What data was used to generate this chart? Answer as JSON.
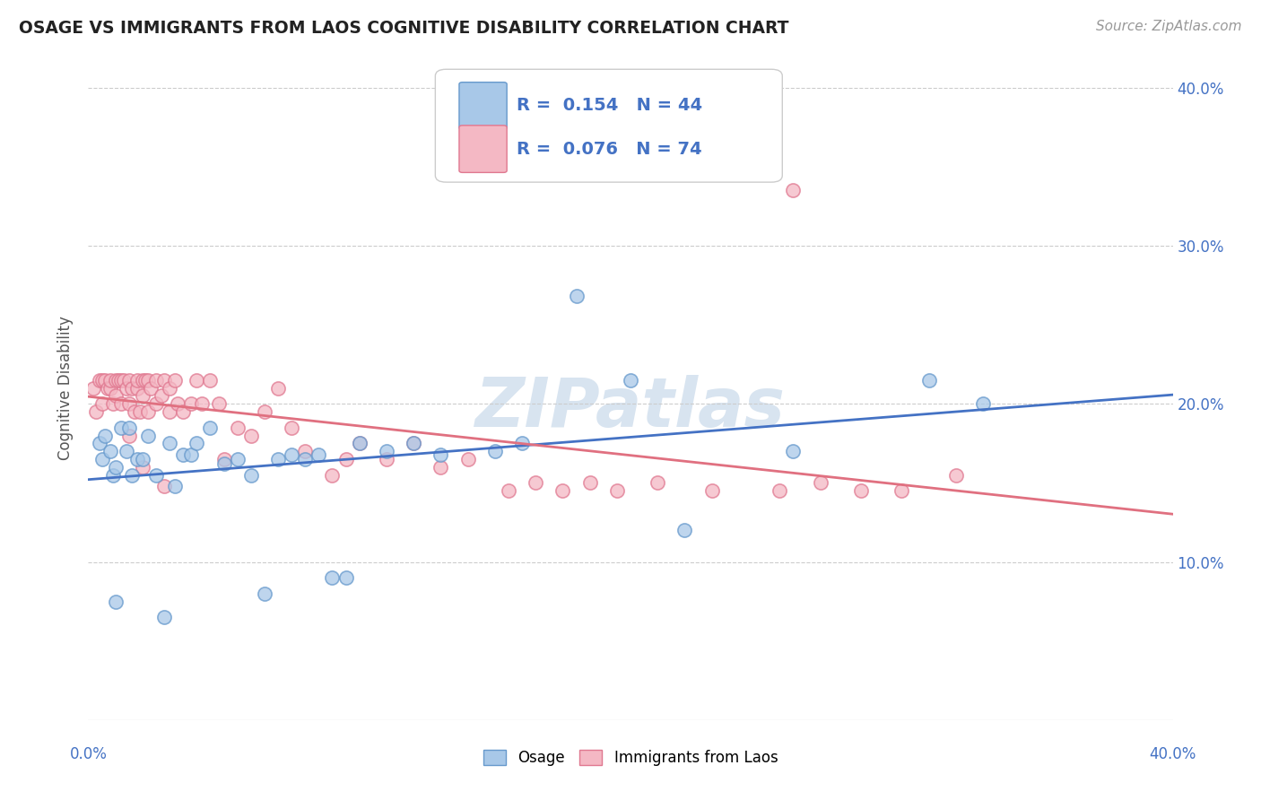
{
  "title": "OSAGE VS IMMIGRANTS FROM LAOS COGNITIVE DISABILITY CORRELATION CHART",
  "source": "Source: ZipAtlas.com",
  "ylabel": "Cognitive Disability",
  "legend1_R": "0.154",
  "legend1_N": "44",
  "legend2_R": "0.076",
  "legend2_N": "74",
  "color_osage_fill": "#A8C8E8",
  "color_osage_edge": "#6699CC",
  "color_laos_fill": "#F4B8C4",
  "color_laos_edge": "#E07890",
  "color_line_osage": "#4472C4",
  "color_line_laos": "#E07080",
  "watermark": "ZIPatlas",
  "xlim": [
    0.0,
    0.4
  ],
  "ylim": [
    0.0,
    0.42
  ],
  "osage_x": [
    0.004,
    0.005,
    0.006,
    0.008,
    0.009,
    0.01,
    0.01,
    0.012,
    0.014,
    0.015,
    0.016,
    0.018,
    0.02,
    0.022,
    0.025,
    0.028,
    0.03,
    0.032,
    0.035,
    0.038,
    0.04,
    0.045,
    0.05,
    0.055,
    0.06,
    0.065,
    0.07,
    0.075,
    0.08,
    0.085,
    0.09,
    0.095,
    0.1,
    0.11,
    0.12,
    0.13,
    0.15,
    0.16,
    0.18,
    0.2,
    0.22,
    0.26,
    0.31,
    0.33
  ],
  "osage_y": [
    0.175,
    0.165,
    0.18,
    0.17,
    0.155,
    0.16,
    0.075,
    0.185,
    0.17,
    0.185,
    0.155,
    0.165,
    0.165,
    0.18,
    0.155,
    0.065,
    0.175,
    0.148,
    0.168,
    0.168,
    0.175,
    0.185,
    0.162,
    0.165,
    0.155,
    0.08,
    0.165,
    0.168,
    0.165,
    0.168,
    0.09,
    0.09,
    0.175,
    0.17,
    0.175,
    0.168,
    0.17,
    0.175,
    0.268,
    0.215,
    0.12,
    0.17,
    0.215,
    0.2
  ],
  "laos_x": [
    0.002,
    0.003,
    0.004,
    0.005,
    0.005,
    0.006,
    0.007,
    0.008,
    0.008,
    0.009,
    0.01,
    0.01,
    0.011,
    0.012,
    0.012,
    0.013,
    0.014,
    0.015,
    0.015,
    0.016,
    0.017,
    0.018,
    0.018,
    0.019,
    0.02,
    0.02,
    0.021,
    0.022,
    0.022,
    0.023,
    0.025,
    0.025,
    0.027,
    0.028,
    0.03,
    0.03,
    0.032,
    0.033,
    0.035,
    0.038,
    0.04,
    0.042,
    0.045,
    0.048,
    0.05,
    0.055,
    0.06,
    0.065,
    0.07,
    0.075,
    0.08,
    0.09,
    0.095,
    0.1,
    0.11,
    0.12,
    0.13,
    0.14,
    0.155,
    0.165,
    0.175,
    0.185,
    0.195,
    0.21,
    0.23,
    0.255,
    0.27,
    0.285,
    0.3,
    0.32,
    0.015,
    0.02,
    0.028,
    0.26
  ],
  "laos_y": [
    0.21,
    0.195,
    0.215,
    0.215,
    0.2,
    0.215,
    0.21,
    0.21,
    0.215,
    0.2,
    0.215,
    0.205,
    0.215,
    0.215,
    0.2,
    0.215,
    0.21,
    0.2,
    0.215,
    0.21,
    0.195,
    0.21,
    0.215,
    0.195,
    0.215,
    0.205,
    0.215,
    0.195,
    0.215,
    0.21,
    0.215,
    0.2,
    0.205,
    0.215,
    0.21,
    0.195,
    0.215,
    0.2,
    0.195,
    0.2,
    0.215,
    0.2,
    0.215,
    0.2,
    0.165,
    0.185,
    0.18,
    0.195,
    0.21,
    0.185,
    0.17,
    0.155,
    0.165,
    0.175,
    0.165,
    0.175,
    0.16,
    0.165,
    0.145,
    0.15,
    0.145,
    0.15,
    0.145,
    0.15,
    0.145,
    0.145,
    0.15,
    0.145,
    0.145,
    0.155,
    0.18,
    0.16,
    0.148,
    0.335
  ]
}
